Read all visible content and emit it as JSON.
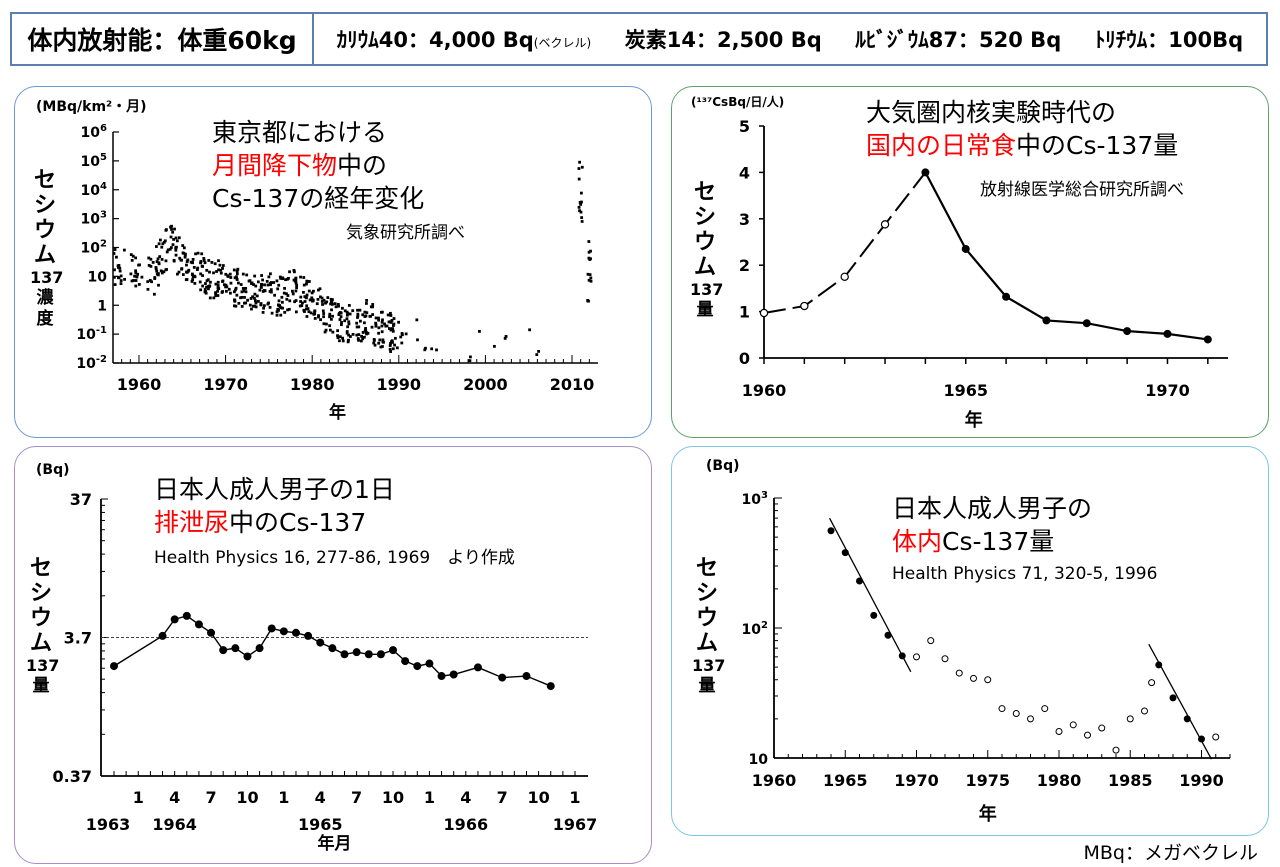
{
  "header": {
    "left": "体内放射能：体重60kg",
    "k40": "ｶﾘｳﾑ40：4,000 Bq",
    "k40_unit": "(ベクレル)",
    "c14": "炭素14：2,500 Bq",
    "rb87": "ﾙﾋﾞｼﾞｳﾑ87：520 Bq",
    "h3": "ﾄﾘﾁｳﾑ：100Bq"
  },
  "footer": "MBq：メガベクレル",
  "chart_data": [
    {
      "type": "scatter",
      "title_line1": "東京都における",
      "title_red": "月間降下物",
      "title_line2_rest": "中の",
      "title_line3": "Cs-137の経年変化",
      "source": "気象研究所調べ",
      "unit": "(MBq/km²・月)",
      "ylabel": [
        "セ",
        "シ",
        "ウ",
        "ム",
        "137",
        "濃",
        "度"
      ],
      "xlabel": "年",
      "xticks": [
        "1960",
        "1970",
        "1980",
        "1990",
        "2000",
        "2010"
      ],
      "yticks": [
        "10^6",
        "10^5",
        "10^4",
        "10^3",
        "10^2",
        "10",
        "1",
        "10^-1",
        "10^-2"
      ],
      "xlim": [
        1957,
        2013
      ],
      "ylim_log10": [
        -2,
        6
      ],
      "series": [
        {
          "name": "monthly fallout (decade trend)",
          "x": [
            1957,
            1959,
            1961,
            1962,
            1963,
            1964,
            1965,
            1966,
            1967,
            1968,
            1969,
            1970,
            1971,
            1972,
            1973,
            1974,
            1975,
            1976,
            1977,
            1978,
            1979,
            1980,
            1981,
            1982,
            1983,
            1984,
            1985,
            1986,
            1987,
            1988,
            1989,
            1990,
            1992,
            1993,
            1998,
            2001,
            2005,
            2011,
            2012
          ],
          "log10_y": [
            1.3,
            1.2,
            1.0,
            1.7,
            2.1,
            1.7,
            1.5,
            1.2,
            1.0,
            0.9,
            0.8,
            0.7,
            0.6,
            0.5,
            0.4,
            0.5,
            0.3,
            0.4,
            0.6,
            0.4,
            0.2,
            0.0,
            -0.3,
            -0.5,
            -0.6,
            -0.7,
            -0.6,
            -0.4,
            -0.8,
            -0.9,
            -1.0,
            -1.2,
            -1.0,
            -1.1,
            -1.5,
            -1.4,
            -1.2,
            4.0,
            1.2
          ]
        }
      ]
    },
    {
      "type": "line",
      "title_line1": "大気圏内核実験時代の",
      "title_red": "国内の日常食",
      "title_line2_rest": "中のCs-137量",
      "source": "放射線医学総合研究所調べ",
      "unit": "(¹³⁷CsBq/日/人)",
      "ylabel": [
        "セ",
        "シ",
        "ウ",
        "ム",
        "137",
        "量"
      ],
      "xlabel": "年",
      "xticks": [
        "1960",
        "1965",
        "1970"
      ],
      "yticks": [
        "0",
        "1",
        "2",
        "3",
        "4",
        "5"
      ],
      "xlim": [
        1960,
        1971.5
      ],
      "ylim": [
        0,
        5
      ],
      "series": [
        {
          "name": "estimated (open, dashed)",
          "x": [
            1960,
            1961,
            1962,
            1963,
            1964
          ],
          "y": [
            0.97,
            1.12,
            1.75,
            2.88,
            4.0
          ]
        },
        {
          "name": "measured (filled, solid)",
          "x": [
            1964,
            1965,
            1966,
            1967,
            1968,
            1969,
            1970,
            1971
          ],
          "y": [
            4.0,
            2.35,
            1.32,
            0.81,
            0.75,
            0.58,
            0.52,
            0.4
          ]
        }
      ]
    },
    {
      "type": "line",
      "title_line1": "日本人成人男子の1日",
      "title_red": "排泄尿",
      "title_line2_rest": "中のCs-137",
      "source": "Health Physics 16, 277-86, 1969　より作成",
      "unit": "(Bq)",
      "ylabel": [
        "セ",
        "シ",
        "ウ",
        "ム",
        "137",
        "量"
      ],
      "xlabel": "年月",
      "xticks": [
        "1",
        "4",
        "7",
        "10",
        "1",
        "4",
        "7",
        "10",
        "1",
        "4",
        "7",
        "10",
        "1"
      ],
      "year_labels": [
        "1963",
        "1964",
        "1965",
        "1966",
        "1967"
      ],
      "yticks": [
        "37",
        "3.7",
        "0.37"
      ],
      "reference_line": 3.7,
      "series": [
        {
          "name": "urine Cs-137",
          "month_index": [
            0,
            4,
            5,
            6,
            7,
            8,
            9,
            10,
            11,
            12,
            13,
            14,
            15,
            16,
            17,
            18,
            19,
            20,
            21,
            22,
            23,
            24,
            25,
            26,
            27,
            28,
            30,
            32,
            34,
            36
          ],
          "y": [
            2.3,
            3.8,
            5.0,
            5.3,
            4.6,
            4.0,
            3.0,
            3.1,
            2.7,
            3.1,
            4.3,
            4.1,
            4.0,
            3.8,
            3.4,
            3.1,
            2.8,
            2.9,
            2.8,
            2.8,
            3.0,
            2.5,
            2.3,
            2.4,
            1.95,
            2.0,
            2.25,
            1.9,
            1.95,
            1.65
          ]
        }
      ]
    },
    {
      "type": "scatter",
      "title_line1": "日本人成人男子の",
      "title_red": "体内",
      "title_line2_rest": "Cs-137量",
      "source": "Health Physics 71, 320-5, 1996",
      "unit": "(Bq)",
      "ylabel": [
        "セ",
        "シ",
        "ウ",
        "ム",
        "137",
        "量"
      ],
      "xlabel": "年",
      "xticks": [
        "1960",
        "1965",
        "1970",
        "1975",
        "1980",
        "1985",
        "1990"
      ],
      "yticks": [
        "10^3",
        "10^2",
        "10"
      ],
      "xlim": [
        1960,
        1992
      ],
      "ylim": [
        10,
        1000
      ],
      "series": [
        {
          "name": "filled",
          "x": [
            1964,
            1965,
            1966,
            1967,
            1968,
            1969,
            1987,
            1988,
            1989,
            1990
          ],
          "y": [
            560,
            380,
            230,
            125,
            88,
            61,
            52,
            29,
            20,
            14
          ]
        },
        {
          "name": "open",
          "x": [
            1970,
            1971,
            1972,
            1973,
            1974,
            1975,
            1976,
            1977,
            1978,
            1979,
            1980,
            1981,
            1982,
            1983,
            1984,
            1985,
            1986,
            1986.5,
            1991
          ],
          "y": [
            60,
            80,
            58,
            45,
            41,
            40,
            24,
            22,
            20,
            24,
            16,
            18,
            15,
            17,
            11.5,
            20,
            23,
            38,
            14.5
          ]
        }
      ]
    }
  ]
}
